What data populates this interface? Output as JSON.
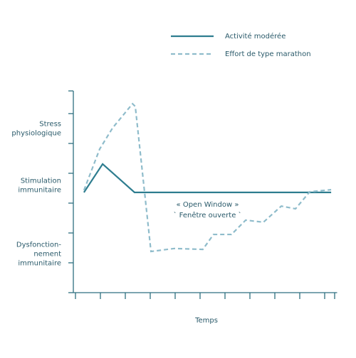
{
  "chart_data": {
    "type": "line",
    "x_label": "Temps",
    "xlim": [
      0,
      10.5
    ],
    "xticks": [
      0,
      1,
      2,
      3,
      4,
      5,
      6,
      7,
      8,
      9,
      10,
      10.4
    ],
    "ylim": [
      0,
      6.76
    ],
    "yticks": [
      0,
      1,
      2,
      3,
      4,
      5,
      6,
      6.76
    ],
    "y_labels": [
      {
        "value": 5.5,
        "label": [
          "Stress",
          "physiologique"
        ]
      },
      {
        "value": 3.6,
        "label": [
          "Stimulation",
          "immunitaire"
        ]
      },
      {
        "value": 1.3,
        "label": [
          "Dysfonction-",
          "nement",
          "immunitaire"
        ]
      }
    ],
    "annotations": [
      {
        "x": 5.3,
        "y": 2.95,
        "text": "« Open Window »"
      },
      {
        "x": 5.3,
        "y": 2.6,
        "text": "` Fenêtre ouverte `"
      }
    ],
    "series": [
      {
        "name": "Activité modérée",
        "color": "#2e7d8f",
        "dashed": false,
        "x": [
          0.34,
          1.09,
          2.37,
          10.26
        ],
        "values": [
          3.36,
          4.31,
          3.36,
          3.36
        ]
      },
      {
        "name": "Effort de type marathon",
        "color": "#8fbccb",
        "dashed": true,
        "x": [
          0.34,
          0.97,
          1.49,
          2.29,
          2.4,
          3.03,
          3.97,
          5.11,
          5.54,
          6.26,
          6.83,
          7.54,
          8.26,
          8.83,
          9.4,
          10.26
        ],
        "values": [
          3.43,
          4.81,
          5.52,
          6.33,
          6.24,
          1.38,
          1.48,
          1.45,
          1.95,
          1.95,
          2.43,
          2.36,
          2.9,
          2.81,
          3.38,
          3.45
        ]
      }
    ]
  }
}
